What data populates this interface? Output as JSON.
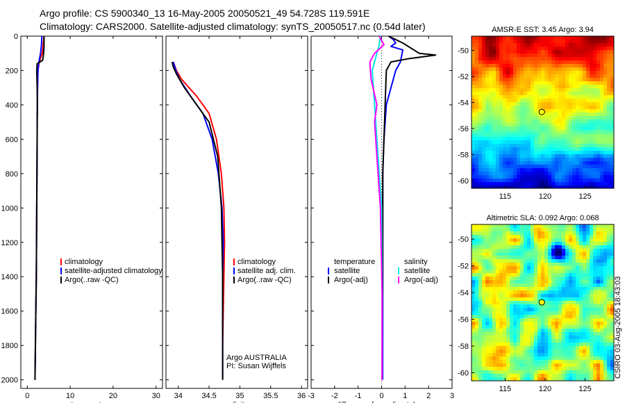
{
  "header": {
    "line1": "Argo profile: CS 5900340_13 16-May-2005 20050521_49 54.728S 119.591E",
    "line2": "Climatology: CARS2000. Satellite-adjusted climatology: synTS_20050517.nc (0.54d later)"
  },
  "side_label": "CSIRO 03-Aug-2005 18:43:03",
  "colors": {
    "red": "#ff0000",
    "blue": "#0000ff",
    "black": "#000000",
    "cyan": "#00e5e5",
    "magenta": "#ff00ff"
  },
  "chart_data": [
    {
      "type": "line",
      "id": "temperature",
      "xlabel": "temperature",
      "ylabel": "",
      "xlim": [
        -1.5,
        31.5
      ],
      "ylim": [
        2050,
        0
      ],
      "y_reversed": true,
      "xticks": [
        0,
        10,
        20,
        30
      ],
      "yticks": [
        0,
        200,
        400,
        600,
        800,
        1000,
        1200,
        1400,
        1600,
        1800,
        2000
      ],
      "legend": [
        "climatology",
        "satellite-adjusted climatology",
        "Argo(..raw -QC)"
      ],
      "legend_position": "right",
      "series": [
        {
          "name": "climatology",
          "color": "red",
          "x": [
            3.9,
            3.7,
            3.5,
            2.8,
            2.5,
            2.4,
            2.35,
            2.3,
            2.3,
            2.25,
            2.2,
            2.15,
            2.1,
            2.0,
            1.95,
            1.9,
            1.85,
            1.8
          ],
          "y": [
            0,
            50,
            100,
            150,
            200,
            300,
            400,
            500,
            600,
            800,
            1000,
            1200,
            1400,
            1600,
            1700,
            1800,
            1900,
            2000
          ]
        },
        {
          "name": "satellite-adjusted climatology",
          "color": "blue",
          "x": [
            3.4,
            3.3,
            3.1,
            2.7,
            2.5,
            2.4,
            2.35,
            2.3,
            2.3,
            2.25,
            2.2,
            2.15,
            2.1,
            2.0,
            1.95,
            1.9,
            1.85,
            1.8
          ],
          "y": [
            0,
            50,
            100,
            150,
            200,
            300,
            400,
            500,
            600,
            800,
            1000,
            1200,
            1400,
            1600,
            1700,
            1800,
            1900,
            2000
          ]
        },
        {
          "name": "Argo(..raw -QC)",
          "color": "black",
          "x": [
            3.9,
            3.9,
            3.8,
            3.6,
            2.3,
            2.2,
            2.3,
            2.35,
            2.3,
            2.25,
            2.2,
            2.15,
            2.1,
            2.0,
            1.9,
            1.8
          ],
          "y": [
            0,
            60,
            100,
            140,
            160,
            200,
            300,
            400,
            600,
            800,
            1000,
            1200,
            1400,
            1600,
            1800,
            2000
          ]
        }
      ]
    },
    {
      "type": "line",
      "id": "salinity",
      "xlabel": "salinity",
      "ylabel": "",
      "xlim": [
        33.8,
        36.1
      ],
      "ylim": [
        2050,
        0
      ],
      "y_reversed": true,
      "xticks": [
        34,
        34.5,
        35,
        35.5,
        36
      ],
      "legend": [
        "climatology",
        "satellite adj. clim.",
        "Argo(..raw -QC)"
      ],
      "legend_position": "right",
      "annotations": [
        "Argo AUSTRALIA",
        "PI: Susan Wijffels"
      ],
      "series": [
        {
          "name": "climatology",
          "color": "red",
          "x": [
            33.92,
            33.97,
            34.05,
            34.3,
            34.5,
            34.62,
            34.7,
            34.74,
            34.75,
            34.74,
            34.73,
            34.72,
            34.72
          ],
          "y": [
            150,
            200,
            250,
            350,
            450,
            600,
            800,
            1000,
            1200,
            1400,
            1600,
            1800,
            2000
          ]
        },
        {
          "name": "satellite adj. clim.",
          "color": "blue",
          "x": [
            33.92,
            33.96,
            34.02,
            34.2,
            34.4,
            34.55,
            34.65,
            34.71,
            34.73,
            34.72,
            34.72,
            34.72,
            34.72
          ],
          "y": [
            150,
            200,
            250,
            350,
            450,
            600,
            800,
            1000,
            1200,
            1400,
            1600,
            1800,
            2000
          ]
        },
        {
          "name": "Argo(..raw -QC)",
          "color": "black",
          "x": [
            33.9,
            33.92,
            33.97,
            34.05,
            34.1,
            34.3,
            34.5,
            34.64,
            34.7,
            34.72,
            34.72,
            34.72
          ],
          "y": [
            150,
            180,
            220,
            270,
            300,
            400,
            500,
            700,
            1000,
            1400,
            1800,
            2000
          ]
        }
      ]
    },
    {
      "type": "line",
      "id": "difference",
      "xlabel": "difference from climatology",
      "ylabel": "",
      "xlim": [
        -3,
        3
      ],
      "ylim": [
        2050,
        0
      ],
      "y_reversed": true,
      "xticks": [
        -3,
        -2,
        -1,
        0,
        1,
        2,
        3
      ],
      "legend_left_title": "temperature",
      "legend_right_title": "salinity",
      "legend_left": [
        "satellite",
        "Argo(-adj)"
      ],
      "legend_right": [
        "satellite",
        "Argo(-adj)"
      ],
      "series": [
        {
          "name": "temperature satellite",
          "color": "blue",
          "x": [
            0.3,
            0.5,
            0.6,
            0.4,
            0.9,
            0.8,
            0.6,
            0.4,
            0.2,
            0.1,
            0.05,
            0.05,
            0.05,
            0.05
          ],
          "y": [
            0,
            20,
            40,
            60,
            80,
            150,
            200,
            300,
            400,
            600,
            800,
            1000,
            1500,
            2000
          ]
        },
        {
          "name": "temperature Argo(-adj)",
          "color": "black",
          "x": [
            0.3,
            0.9,
            1.6,
            2.3,
            1.2,
            0.4,
            0.2,
            0.15,
            0.1,
            0.05,
            0.05,
            0.02
          ],
          "y": [
            0,
            40,
            100,
            110,
            130,
            150,
            200,
            400,
            600,
            800,
            1000,
            2000
          ]
        },
        {
          "name": "salinity satellite",
          "color": "cyan",
          "x": [
            -0.05,
            -0.1,
            -0.2,
            -0.4,
            -0.3,
            -0.2,
            -0.1,
            0,
            0.02,
            0.03
          ],
          "y": [
            0,
            50,
            100,
            200,
            400,
            600,
            800,
            1000,
            1500,
            2000
          ]
        },
        {
          "name": "salinity Argo(-adj)",
          "color": "magenta",
          "x": [
            -0.1,
            0.1,
            -0.3,
            -0.5,
            -0.45,
            -0.2,
            -0.3,
            -0.15,
            -0.05,
            0.02,
            0.02
          ],
          "y": [
            0,
            50,
            100,
            150,
            250,
            400,
            500,
            800,
            1000,
            1500,
            2000
          ]
        }
      ]
    },
    {
      "type": "heatmap",
      "id": "sst_map",
      "title": "AMSR-E SST: 3.45 Argo: 3.94",
      "xlim": [
        110.8,
        128.6
      ],
      "ylim": [
        -60.6,
        -48.9
      ],
      "xticks": [
        115,
        120,
        125
      ],
      "yticks": [
        -50,
        -52,
        -54,
        -56,
        -58,
        -60
      ],
      "marker": {
        "lon": 119.591,
        "lat": -54.728
      }
    },
    {
      "type": "heatmap",
      "id": "sla_map",
      "title": "Altimetric SLA: 0.092 Argo: 0.068",
      "xlim": [
        110.8,
        128.6
      ],
      "ylim": [
        -60.6,
        -48.9
      ],
      "xticks": [
        115,
        120,
        125
      ],
      "yticks": [
        -50,
        -52,
        -54,
        -56,
        -58,
        -60
      ],
      "marker": {
        "lon": 119.591,
        "lat": -54.728
      }
    }
  ]
}
